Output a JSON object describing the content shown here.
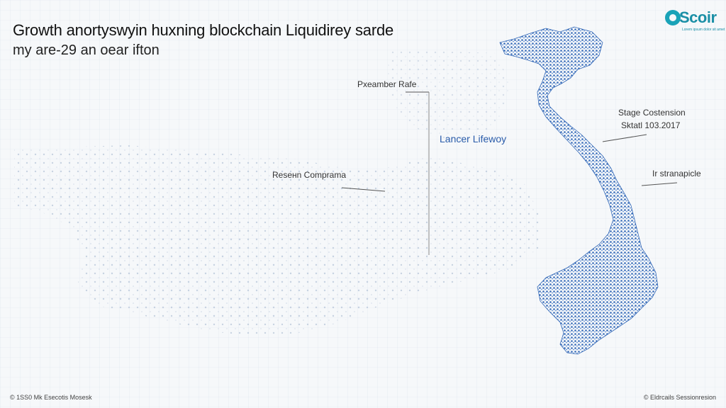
{
  "header": {
    "title": "Growth anortyswyin huxning blockchain Liquidirey sarde",
    "subtitle": "my are-29 an oear ifton"
  },
  "logo": {
    "text": "Scoir",
    "tagline": "Lorem ipsum dolor sit amet",
    "color": "#1aa3b8"
  },
  "callouts": {
    "parameter_rate": "Pxeamber Rafe",
    "lancer_lifeway": "Lancer Lifewoy",
    "resenn_comprama": "Reseнn Comprama",
    "stage_costension": "Stage Costension",
    "stage_costension_value": "Sktatl 103.2017",
    "in_stranapicle": "Ir stranapicle"
  },
  "footer": {
    "left": "© 1SS0 Mk Esecotis Mosesk",
    "right": "© Eldrcails Sessionresion"
  },
  "colors": {
    "map_blue": "#2b62b5",
    "grid": "#c9d6e6",
    "dot_grid": "#9fb3cf",
    "callout_blue": "#2a5caa"
  }
}
